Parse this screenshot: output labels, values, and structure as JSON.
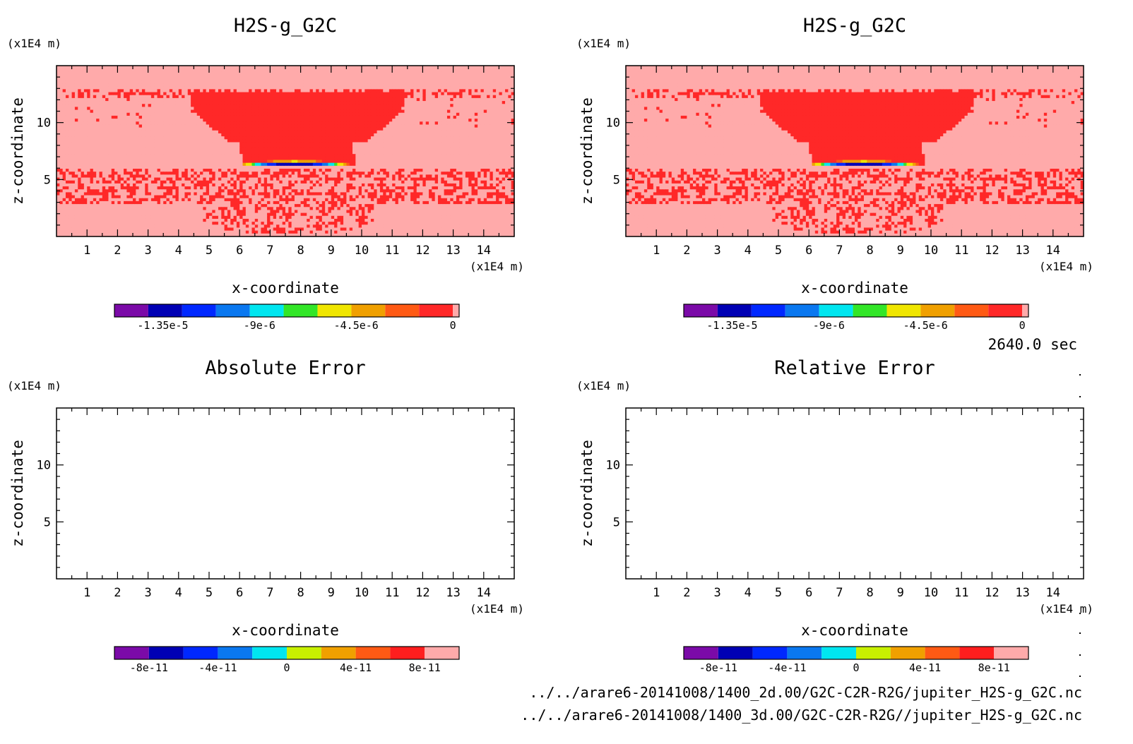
{
  "time_label": "2640.0 sec",
  "files": [
    "../../arare6-20141008/1400_2d.00/G2C-C2R-R2G/jupiter_H2S-g_G2C.nc",
    "../../arare6-20141008/1400_3d.00/G2C-C2R-R2G//jupiter_H2S-g_G2C.nc"
  ],
  "chart_data": [
    {
      "type": "heatmap",
      "title": "H2S-g_G2C",
      "xlabel": "x-coordinate",
      "ylabel": "z-coordinate",
      "x_unit": "(x1E4 m)",
      "y_unit": "(x1E4 m)",
      "xlim": [
        0,
        15
      ],
      "ylim": [
        0,
        15
      ],
      "x_ticks": [
        1,
        2,
        3,
        4,
        5,
        6,
        7,
        8,
        9,
        10,
        11,
        12,
        13,
        14
      ],
      "y_ticks": [
        5,
        10
      ],
      "colorbar": {
        "colors": [
          "#7b0aa8",
          "#0000b4",
          "#0028ff",
          "#0a78f0",
          "#00e6f0",
          "#32e628",
          "#f0e600",
          "#f0a000",
          "#ff5a14",
          "#ff2828",
          "#ffaaaa"
        ],
        "tick_labels": [
          "-1.35e-5",
          "-9e-6",
          "-4.5e-6",
          "0"
        ],
        "tick_values": [
          -1.35e-05,
          -9e-06,
          -4.5e-06,
          0
        ],
        "range": [
          -1.575e-05,
          1.5e-06
        ]
      },
      "fields": {
        "background_range": [
          -1.5e-06,
          0
        ],
        "cloud_value": -1e-06,
        "cloud_top_z": 12.8,
        "cloud_bottom_z": 6.3,
        "min_value": -1.5e-05,
        "min_x": 7.8,
        "min_z": 6.2
      }
    },
    {
      "type": "heatmap",
      "title": "H2S-g_G2C",
      "xlabel": "x-coordinate",
      "ylabel": "z-coordinate",
      "x_unit": "(x1E4 m)",
      "y_unit": "(x1E4 m)",
      "xlim": [
        0,
        15
      ],
      "ylim": [
        0,
        15
      ],
      "x_ticks": [
        1,
        2,
        3,
        4,
        5,
        6,
        7,
        8,
        9,
        10,
        11,
        12,
        13,
        14
      ],
      "y_ticks": [
        5,
        10
      ],
      "colorbar": {
        "colors": [
          "#7b0aa8",
          "#0000b4",
          "#0028ff",
          "#0a78f0",
          "#00e6f0",
          "#32e628",
          "#f0e600",
          "#f0a000",
          "#ff5a14",
          "#ff2828",
          "#ffaaaa"
        ],
        "tick_labels": [
          "-1.35e-5",
          "-9e-6",
          "-4.5e-6",
          "0"
        ],
        "tick_values": [
          -1.35e-05,
          -9e-06,
          -4.5e-06,
          0
        ],
        "range": [
          -1.575e-05,
          1.5e-06
        ]
      },
      "fields": {
        "background_range": [
          -1.5e-06,
          0
        ],
        "cloud_value": -1e-06,
        "cloud_top_z": 12.8,
        "cloud_bottom_z": 6.3,
        "min_value": -1.5e-05,
        "min_x": 7.8,
        "min_z": 6.2
      }
    },
    {
      "type": "heatmap",
      "title": "Absolute Error",
      "xlabel": "x-coordinate",
      "ylabel": "z-coordinate",
      "x_unit": "(x1E4 m)",
      "y_unit": "(x1E4 m)",
      "xlim": [
        0,
        15
      ],
      "ylim": [
        0,
        15
      ],
      "x_ticks": [
        1,
        2,
        3,
        4,
        5,
        6,
        7,
        8,
        9,
        10,
        11,
        12,
        13,
        14
      ],
      "y_ticks": [
        5,
        10
      ],
      "values": "empty",
      "colorbar": {
        "colors": [
          "#7b0aa8",
          "#0000b4",
          "#0028ff",
          "#0a78f0",
          "#00e6f0",
          "#c8f000",
          "#f0a000",
          "#ff5a14",
          "#ff1e1e",
          "#ffaaaa"
        ],
        "tick_labels": [
          "-8e-11",
          "-4e-11",
          "0",
          "4e-11",
          "8e-11"
        ],
        "tick_values": [
          -8e-11,
          -4e-11,
          0,
          4e-11,
          8e-11
        ],
        "range": [
          -1e-10,
          1e-10
        ]
      }
    },
    {
      "type": "heatmap",
      "title": "Relative Error",
      "xlabel": "x-coordinate",
      "ylabel": "z-coordinate",
      "x_unit": "(x1E4 m)",
      "y_unit": "(x1E4 m)",
      "xlim": [
        0,
        15
      ],
      "ylim": [
        0,
        15
      ],
      "x_ticks": [
        1,
        2,
        3,
        4,
        5,
        6,
        7,
        8,
        9,
        10,
        11,
        12,
        13,
        14
      ],
      "y_ticks": [
        5,
        10
      ],
      "values": "empty",
      "colorbar": {
        "colors": [
          "#7b0aa8",
          "#0000b4",
          "#0028ff",
          "#0a78f0",
          "#00e6f0",
          "#c8f000",
          "#f0a000",
          "#ff5a14",
          "#ff1e1e",
          "#ffaaaa"
        ],
        "tick_labels": [
          "-8e-11",
          "-4e-11",
          "0",
          "4e-11",
          "8e-11"
        ],
        "tick_values": [
          -8e-11,
          -4e-11,
          0,
          4e-11,
          8e-11
        ],
        "range": [
          -1e-10,
          1e-10
        ]
      }
    }
  ]
}
